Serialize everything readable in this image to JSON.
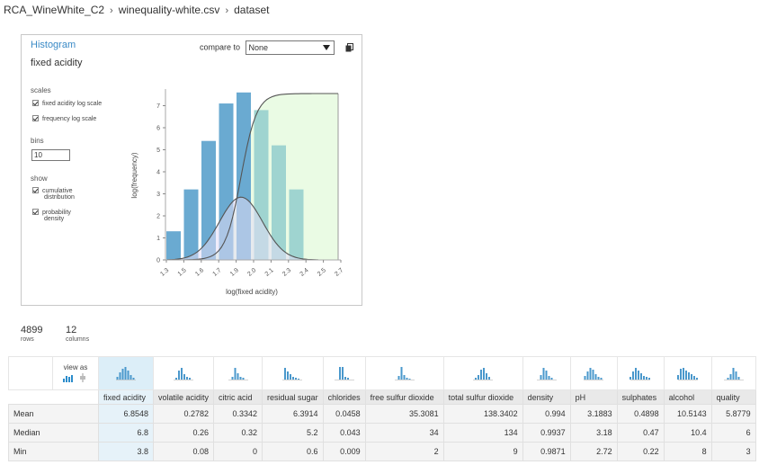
{
  "breadcrumb": [
    "RCA_WineWhite_C2",
    "winequality-white.csv",
    "dataset"
  ],
  "panel": {
    "title": "Histogram",
    "subtitle": "fixed acidity",
    "compare_label": "compare to",
    "compare_value": "None",
    "scales_label": "scales",
    "scale_options": [
      "fixed acidity log scale",
      "frequency log scale"
    ],
    "bins_label": "bins",
    "bins_value": "10",
    "show_label": "show",
    "show_options": [
      [
        "cumulative",
        "distribution"
      ],
      [
        "probability",
        "density"
      ]
    ]
  },
  "chart_data": {
    "type": "bar",
    "xlabel": "log(fixed acidity)",
    "ylabel": "log(frequency)",
    "x_ticks": [
      "1.3",
      "1.5",
      "1.6",
      "1.7",
      "1.9",
      "2.0",
      "2.1",
      "2.3",
      "2.4",
      "2.5",
      "2.7"
    ],
    "y_ticks": [
      "0",
      "1",
      "2",
      "3",
      "4",
      "5",
      "6",
      "7"
    ],
    "ylim": [
      0,
      8
    ],
    "values": [
      1.3,
      3.2,
      5.4,
      7.1,
      7.6,
      6.8,
      5.2,
      3.2,
      0,
      0
    ],
    "overlay": [
      "cumulative distribution",
      "probability density"
    ],
    "colors": {
      "bar": "#6aaad1",
      "bar_shaded": "#9fd4d0",
      "cdf_fill": "#eafbe4",
      "curve": "#555555"
    }
  },
  "summary": {
    "rows": "4899",
    "rows_label": "rows",
    "columns": "12",
    "columns_label": "columns"
  },
  "grid": {
    "view_as": "view as",
    "columns": [
      "fixed acidity",
      "volatile acidity",
      "citric acid",
      "residual sugar",
      "chlorides",
      "free sulfur dioxide",
      "total sulfur dioxide",
      "density",
      "pH",
      "sulphates",
      "alcohol",
      "quality"
    ],
    "rows": [
      {
        "label": "Mean",
        "values": [
          "6.8548",
          "0.2782",
          "0.3342",
          "6.3914",
          "0.0458",
          "35.3081",
          "138.3402",
          "0.994",
          "3.1883",
          "0.4898",
          "10.5143",
          "5.8779"
        ]
      },
      {
        "label": "Median",
        "values": [
          "6.8",
          "0.26",
          "0.32",
          "5.2",
          "0.043",
          "34",
          "134",
          "0.9937",
          "3.18",
          "0.47",
          "10.4",
          "6"
        ]
      },
      {
        "label": "Min",
        "values": [
          "3.8",
          "0.08",
          "0",
          "0.6",
          "0.009",
          "2",
          "9",
          "0.9871",
          "2.72",
          "0.22",
          "8",
          "3"
        ]
      }
    ]
  }
}
